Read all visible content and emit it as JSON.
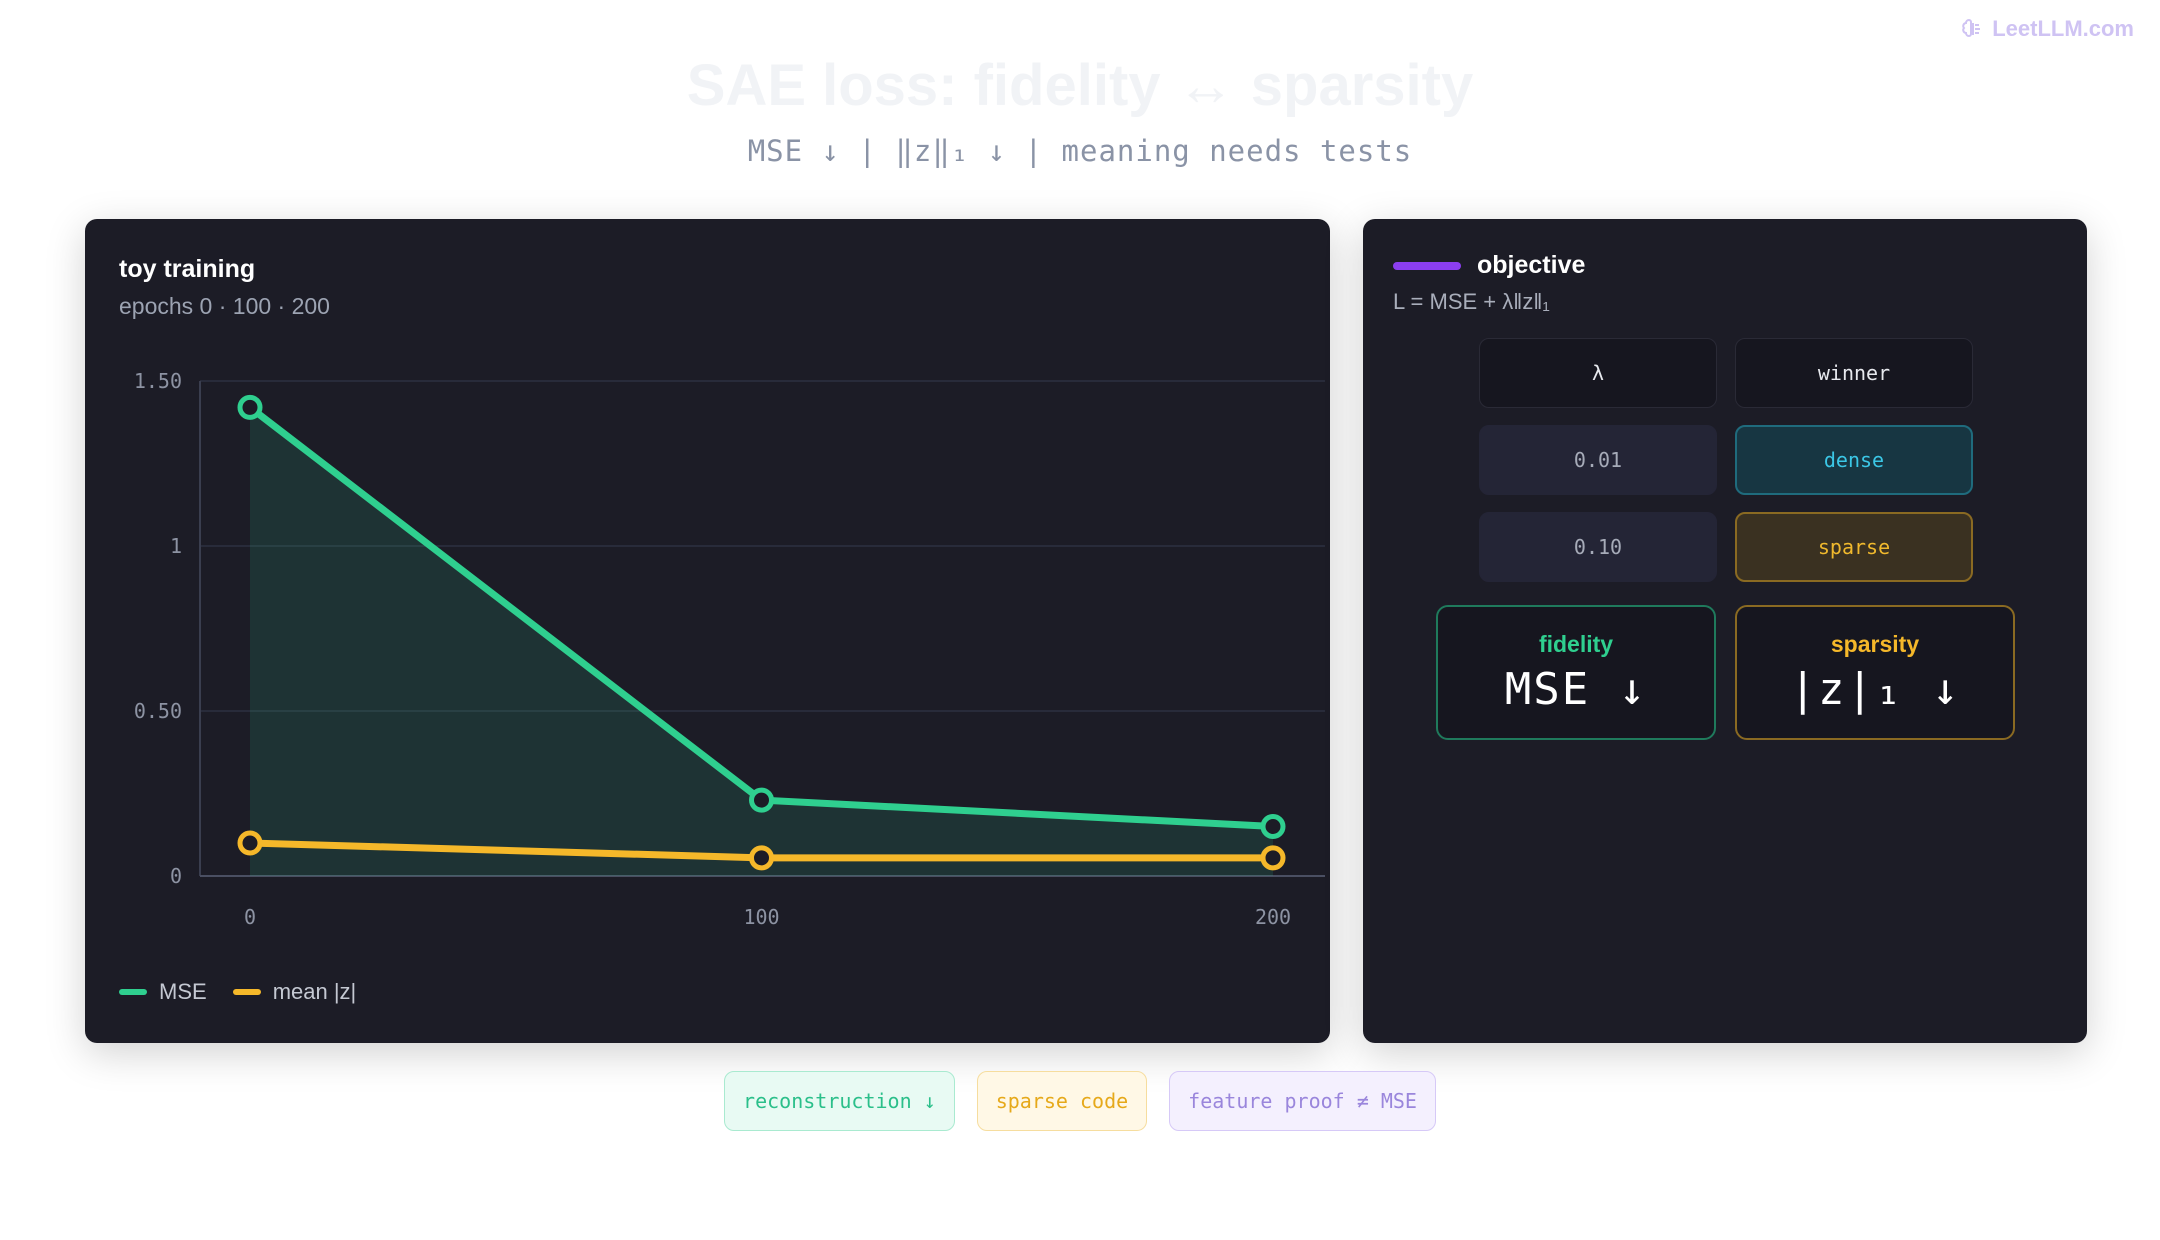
{
  "brand": {
    "text": "LeetLLM.com",
    "icon": "brain-icon",
    "color": "#cfc3f3"
  },
  "header": {
    "title": "SAE loss: fidelity ↔ sparsity",
    "subtitle": "MSE ↓ | ‖z‖₁ ↓ | meaning needs tests"
  },
  "left_panel": {
    "title": "toy training",
    "subtitle": "epochs 0 · 100 · 200"
  },
  "chart_data": {
    "type": "line",
    "title": "toy training",
    "subtitle": "epochs 0 · 100 · 200",
    "x": [
      0,
      100,
      200
    ],
    "x_tick_labels": [
      "0",
      "100",
      "200"
    ],
    "xlim": [
      0,
      200
    ],
    "ylim": [
      0,
      1.5
    ],
    "y_ticks": [
      0,
      0.5,
      1,
      1.5
    ],
    "y_tick_labels": [
      "0",
      "0.50",
      "1",
      "1.50"
    ],
    "grid": true,
    "legend_placement": "bottom-left",
    "series": [
      {
        "name": "MSE",
        "values": [
          1.42,
          0.23,
          0.15
        ],
        "color": "#2fcf8f",
        "area": true
      },
      {
        "name": "mean |z|",
        "values": [
          0.1,
          0.055,
          0.055
        ],
        "color": "#f5b82a",
        "area": false
      }
    ]
  },
  "legend": [
    {
      "label": "MSE",
      "color": "#2fcf8f"
    },
    {
      "label": "mean |z|",
      "color": "#f5b82a"
    }
  ],
  "objective": {
    "title": "objective",
    "accent": "#8b3ef0",
    "formula": "L = MSE + λ‖z‖₁",
    "table": {
      "headers": [
        "λ",
        "winner"
      ],
      "rows": [
        {
          "lambda": "0.01",
          "winner": "dense"
        },
        {
          "lambda": "0.10",
          "winner": "sparse"
        }
      ]
    },
    "fidelity": {
      "label": "fidelity",
      "value": "MSE ↓",
      "color": "#2fcf8f"
    },
    "sparsity": {
      "label": "sparsity",
      "value": "|z|₁ ↓",
      "color": "#f5b82a"
    }
  },
  "tags": [
    {
      "text": "reconstruction ↓"
    },
    {
      "text": "sparse code"
    },
    {
      "text": "feature proof ≠ MSE"
    }
  ]
}
